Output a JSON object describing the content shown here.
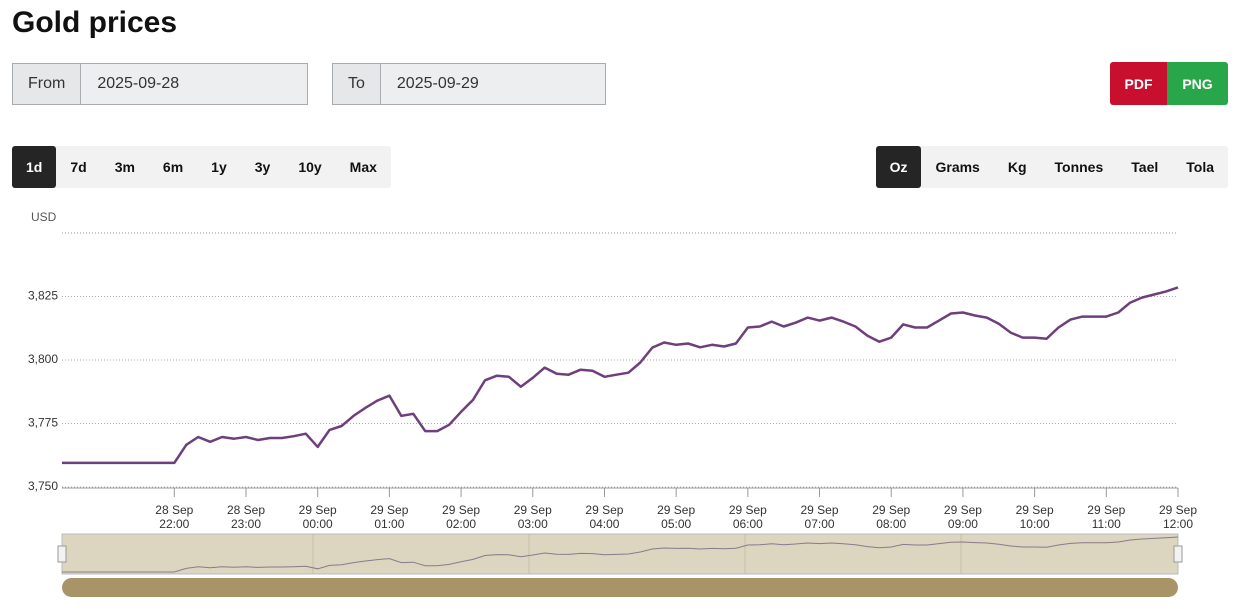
{
  "header": {
    "title": "Gold prices"
  },
  "date_range": {
    "from_label": "From",
    "from_value": "2025-09-28",
    "to_label": "To",
    "to_value": "2025-09-29"
  },
  "export_buttons": [
    "PDF",
    "PNG"
  ],
  "range_buttons": {
    "items": [
      "1d",
      "7d",
      "3m",
      "6m",
      "1y",
      "3y",
      "10y",
      "Max"
    ],
    "selected": 0
  },
  "unit_buttons": {
    "items": [
      "Oz",
      "Grams",
      "Kg",
      "Tonnes",
      "Tael",
      "Tola"
    ],
    "selected": 0
  },
  "chart_data": {
    "type": "line",
    "y_label": "USD",
    "x": [
      "2025-09-28T20:26",
      "2025-09-28T22:00",
      "2025-09-28T22:10",
      "2025-09-28T22:20",
      "2025-09-28T22:30",
      "2025-09-28T22:40",
      "2025-09-28T22:50",
      "2025-09-28T23:00",
      "2025-09-28T23:10",
      "2025-09-28T23:20",
      "2025-09-28T23:30",
      "2025-09-28T23:40",
      "2025-09-28T23:50",
      "2025-09-29T00:00",
      "2025-09-29T00:10",
      "2025-09-29T00:20",
      "2025-09-29T00:30",
      "2025-09-29T00:40",
      "2025-09-29T00:50",
      "2025-09-29T01:00",
      "2025-09-29T01:10",
      "2025-09-29T01:20",
      "2025-09-29T01:30",
      "2025-09-29T01:40",
      "2025-09-29T01:50",
      "2025-09-29T02:00",
      "2025-09-29T02:10",
      "2025-09-29T02:20",
      "2025-09-29T02:30",
      "2025-09-29T02:40",
      "2025-09-29T02:50",
      "2025-09-29T03:00",
      "2025-09-29T03:10",
      "2025-09-29T03:20",
      "2025-09-29T03:30",
      "2025-09-29T03:40",
      "2025-09-29T03:50",
      "2025-09-29T04:00",
      "2025-09-29T04:10",
      "2025-09-29T04:20",
      "2025-09-29T04:30",
      "2025-09-29T04:40",
      "2025-09-29T04:50",
      "2025-09-29T05:00",
      "2025-09-29T05:10",
      "2025-09-29T05:20",
      "2025-09-29T05:30",
      "2025-09-29T05:40",
      "2025-09-29T05:50",
      "2025-09-29T06:00",
      "2025-09-29T06:10",
      "2025-09-29T06:20",
      "2025-09-29T06:30",
      "2025-09-29T06:40",
      "2025-09-29T06:50",
      "2025-09-29T07:00",
      "2025-09-29T07:10",
      "2025-09-29T07:20",
      "2025-09-29T07:30",
      "2025-09-29T07:40",
      "2025-09-29T07:50",
      "2025-09-29T08:00",
      "2025-09-29T08:10",
      "2025-09-29T08:20",
      "2025-09-29T08:30",
      "2025-09-29T08:40",
      "2025-09-29T08:50",
      "2025-09-29T09:00",
      "2025-09-29T09:10",
      "2025-09-29T09:20",
      "2025-09-29T09:30",
      "2025-09-29T09:40",
      "2025-09-29T09:50",
      "2025-09-29T10:00",
      "2025-09-29T10:10",
      "2025-09-29T10:20",
      "2025-09-29T10:30",
      "2025-09-29T10:40",
      "2025-09-29T10:50",
      "2025-09-29T11:00",
      "2025-09-29T11:10",
      "2025-09-29T11:20",
      "2025-09-29T11:30",
      "2025-09-29T11:40",
      "2025-09-29T11:50",
      "2025-09-29T12:00"
    ],
    "series": [
      {
        "name": "Gold",
        "color": "#6e3f7c",
        "values": [
          3759.5,
          3759.5,
          3766.6,
          3769.7,
          3767.8,
          3769.7,
          3769,
          3769.7,
          3768.5,
          3769.3,
          3769.3,
          3770,
          3771,
          3765.8,
          3772.5,
          3774,
          3778,
          3781.2,
          3784,
          3786,
          3778,
          3778.8,
          3772,
          3772,
          3774.5,
          3779.6,
          3784.3,
          3792,
          3793.8,
          3793.4,
          3789.5,
          3793,
          3797,
          3794.6,
          3794.2,
          3796.2,
          3795.8,
          3793.4,
          3794.2,
          3795,
          3799,
          3804.9,
          3806.9,
          3806,
          3806.5,
          3805,
          3806,
          3805.3,
          3806.5,
          3812.8,
          3813.2,
          3815.1,
          3813.2,
          3814.7,
          3816.7,
          3815.5,
          3816.7,
          3815.1,
          3813.2,
          3809.6,
          3807.2,
          3808.8,
          3814,
          3812.8,
          3812.8,
          3815.5,
          3818.3,
          3818.7,
          3817.5,
          3816.7,
          3814.3,
          3810.8,
          3808.8,
          3808.8,
          3808.4,
          3812.8,
          3815.9,
          3817.1,
          3817.1,
          3817.1,
          3818.7,
          3822.6,
          3824.6,
          3825.8,
          3827,
          3828.6
        ]
      }
    ],
    "xlim": [
      "2025-09-28T20:26",
      "2025-09-29T12:00"
    ],
    "xticks": [
      {
        "value": "2025-09-28T22:00",
        "label": "28 Sep 22:00"
      },
      {
        "value": "2025-09-28T23:00",
        "label": "28 Sep 23:00"
      },
      {
        "value": "2025-09-29T00:00",
        "label": "29 Sep 00:00"
      },
      {
        "value": "2025-09-29T01:00",
        "label": "29 Sep 01:00"
      },
      {
        "value": "2025-09-29T02:00",
        "label": "29 Sep 02:00"
      },
      {
        "value": "2025-09-29T03:00",
        "label": "29 Sep 03:00"
      },
      {
        "value": "2025-09-29T04:00",
        "label": "29 Sep 04:00"
      },
      {
        "value": "2025-09-29T05:00",
        "label": "29 Sep 05:00"
      },
      {
        "value": "2025-09-29T06:00",
        "label": "29 Sep 06:00"
      },
      {
        "value": "2025-09-29T07:00",
        "label": "29 Sep 07:00"
      },
      {
        "value": "2025-09-29T08:00",
        "label": "29 Sep 08:00"
      },
      {
        "value": "2025-09-29T09:00",
        "label": "29 Sep 09:00"
      },
      {
        "value": "2025-09-29T10:00",
        "label": "29 Sep 10:00"
      },
      {
        "value": "2025-09-29T11:00",
        "label": "29 Sep 11:00"
      },
      {
        "value": "2025-09-29T12:00",
        "label": "29 Sep 12:00"
      }
    ],
    "ylim": [
      3750,
      3850
    ],
    "yticks": [
      {
        "value": 3750,
        "label": "3,750"
      },
      {
        "value": 3775,
        "label": "3,775"
      },
      {
        "value": 3800,
        "label": "3,800"
      },
      {
        "value": 3825,
        "label": "3,825"
      }
    ],
    "grid": true
  }
}
